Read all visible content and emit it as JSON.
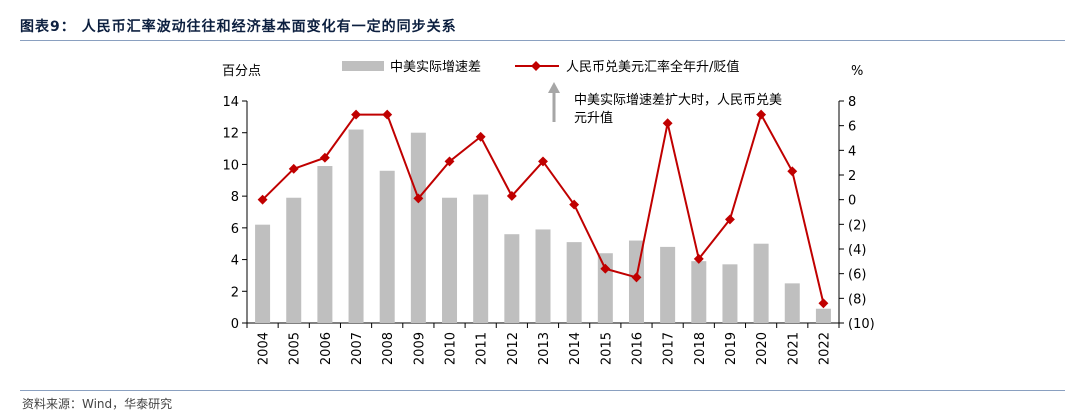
{
  "header": {
    "title": "图表9：  人民币汇率波动往往和经济基本面变化有一定的同步关系"
  },
  "footer": {
    "source": "资料来源：Wind，华泰研究"
  },
  "chart_data": {
    "type": "bar+line",
    "title": "图表9：  人民币汇率波动往往和经济基本面变化有一定的同步关系",
    "categories": [
      "2004",
      "2005",
      "2006",
      "2007",
      "2008",
      "2009",
      "2010",
      "2011",
      "2012",
      "2013",
      "2014",
      "2015",
      "2016",
      "2017",
      "2018",
      "2019",
      "2020",
      "2021",
      "2022"
    ],
    "series": [
      {
        "name": "中美实际增速差",
        "type": "bar",
        "axis": "left",
        "color": "#bfbfbf",
        "values": [
          6.2,
          7.9,
          9.9,
          12.2,
          9.6,
          12.0,
          7.9,
          8.1,
          5.6,
          5.9,
          5.1,
          4.4,
          5.2,
          4.8,
          3.9,
          3.7,
          5.0,
          2.5,
          0.9
        ]
      },
      {
        "name": "人民币兑美元汇率全年升/贬值",
        "type": "line",
        "axis": "right",
        "color": "#c00000",
        "values": [
          0.0,
          2.5,
          3.4,
          6.9,
          6.9,
          0.1,
          3.1,
          5.1,
          0.3,
          3.1,
          -0.4,
          -5.6,
          -6.3,
          6.2,
          -4.8,
          -1.6,
          6.9,
          2.3,
          -8.4
        ]
      }
    ],
    "y_left": {
      "label": "百分点",
      "range": [
        0,
        14
      ],
      "ticks": [
        "0",
        "2",
        "4",
        "6",
        "8",
        "10",
        "12",
        "14"
      ]
    },
    "y_right": {
      "label": "%",
      "range": [
        -10,
        8
      ],
      "ticks": [
        "(10)",
        "(8)",
        "(6)",
        "(4)",
        "(2)",
        "0",
        "2",
        "4",
        "6",
        "8"
      ]
    },
    "legend": [
      "中美实际增速差",
      "人民币兑美元汇率全年升/贬值"
    ],
    "annotation": {
      "line1": "中美实际增速差扩大时，人民币兑美",
      "line2": "元升值"
    }
  }
}
